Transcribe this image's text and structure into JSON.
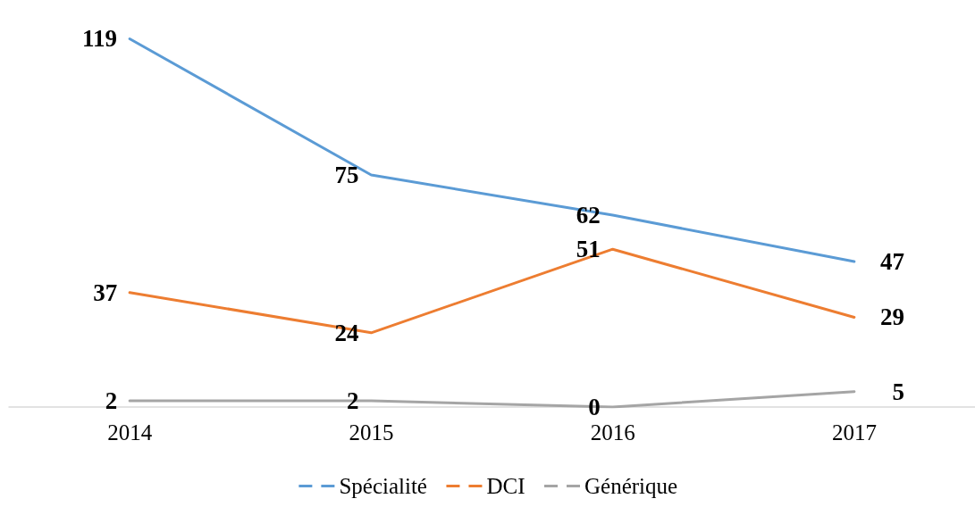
{
  "chart_data": {
    "type": "line",
    "categories": [
      "2014",
      "2015",
      "2016",
      "2017"
    ],
    "series": [
      {
        "name": "Spécialité",
        "color": "#5b9bd5",
        "values": [
          119,
          75,
          62,
          47
        ]
      },
      {
        "name": "DCI",
        "color": "#ed7d31",
        "values": [
          37,
          24,
          51,
          29
        ]
      },
      {
        "name": "Générique",
        "color": "#a5a5a5",
        "values": [
          2,
          2,
          0,
          5
        ]
      }
    ],
    "data_labels": true,
    "legend": "bottom",
    "marker": "none",
    "line_style": "solid"
  }
}
